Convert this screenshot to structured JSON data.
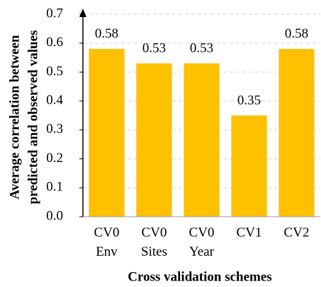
{
  "chart_data": {
    "type": "bar",
    "xlabel": "Cross validation schemes",
    "ylabel": [
      "Average correlation between",
      "predicted and observed values"
    ],
    "categories": [
      "CV0\nEnv",
      "CV0\nSites",
      "CV0\nYear",
      "CV1",
      "CV2"
    ],
    "values": [
      0.58,
      0.53,
      0.53,
      0.35,
      0.58
    ],
    "color": "#ffc000",
    "ylim": [
      0,
      0.7
    ],
    "yticks": [
      {
        "value": 0,
        "label": "0.0"
      },
      0.1,
      0.2,
      0.3,
      0.4,
      0.5,
      0.6,
      0.7
    ],
    "grid": true
  }
}
